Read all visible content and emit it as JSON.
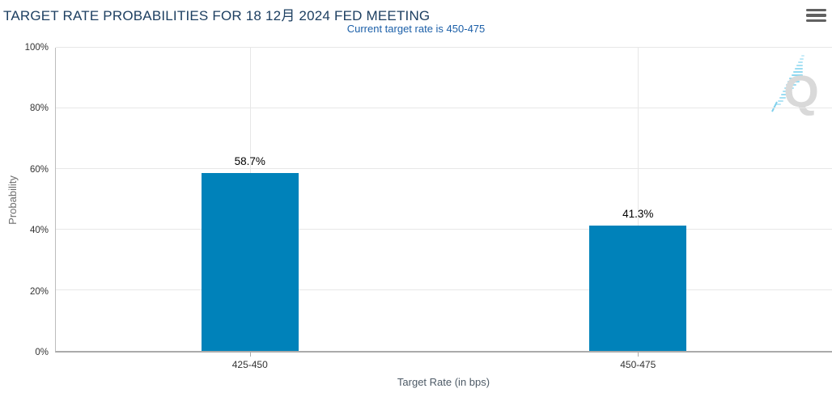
{
  "header": {
    "title": "TARGET RATE PROBABILITIES FOR 18 12月 2024 FED MEETING",
    "subtitle": "Current target rate is 450-475"
  },
  "menu": {
    "tooltip": "Chart context menu"
  },
  "watermark": {
    "letter": "Q"
  },
  "colors": {
    "bar": "#0082ba",
    "title": "#1d3f61",
    "subtitle": "#1b5fa8",
    "gridline": "#e7e7e7",
    "streak": "#a5e0f3"
  },
  "chart_data": {
    "type": "bar",
    "title": "TARGET RATE PROBABILITIES FOR 18 12月 2024 FED MEETING",
    "subtitle": "Current target rate is 450-475",
    "categories": [
      "425-450",
      "450-475"
    ],
    "values": [
      58.7,
      41.3
    ],
    "value_labels": [
      "58.7%",
      "41.3%"
    ],
    "xlabel": "Target Rate (in bps)",
    "ylabel": "Probability",
    "ylim": [
      0,
      100
    ],
    "yticks": [
      "0%",
      "20%",
      "40%",
      "60%",
      "80%",
      "100%"
    ],
    "grid": true,
    "legend": false
  }
}
